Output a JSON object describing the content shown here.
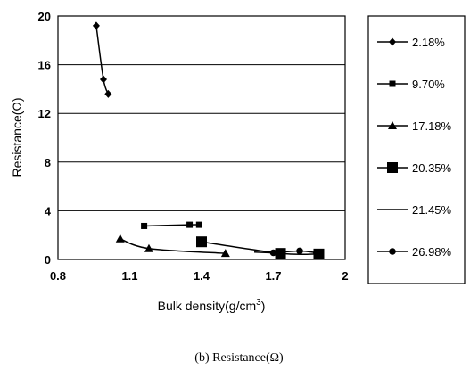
{
  "chart_data": {
    "type": "scatter",
    "xlabel": "Bulk density(g/cm",
    "xlabel_sup": "3",
    "xlabel_end": ")",
    "ylabel": "Resistance(Ω)",
    "caption": "(b) Resistance(Ω)",
    "xlim": [
      0.8,
      2.0
    ],
    "ylim": [
      0,
      20
    ],
    "x_ticks": [
      "0.8",
      "1.1",
      "1.4",
      "1.7",
      "2"
    ],
    "y_ticks": [
      "0",
      "4",
      "8",
      "12",
      "16",
      "20"
    ],
    "grid": "horizontal",
    "legend_position": "right",
    "series": [
      {
        "name": "2.18%",
        "marker": "diamond",
        "points": [
          [
            0.96,
            19.2
          ],
          [
            0.99,
            14.8
          ],
          [
            1.01,
            13.6
          ]
        ]
      },
      {
        "name": "9.70%",
        "marker": "square",
        "points": [
          [
            1.16,
            2.75
          ],
          [
            1.35,
            2.85
          ],
          [
            1.39,
            2.85
          ]
        ]
      },
      {
        "name": "17.18%",
        "marker": "triangle",
        "points": [
          [
            1.06,
            1.7
          ],
          [
            1.18,
            0.9
          ],
          [
            1.5,
            0.5
          ]
        ]
      },
      {
        "name": "20.35%",
        "marker": "bigsquare",
        "points": [
          [
            1.4,
            1.45
          ],
          [
            1.73,
            0.5
          ],
          [
            1.89,
            0.45
          ]
        ]
      },
      {
        "name": "21.45%",
        "marker": "none",
        "points": [
          [
            1.62,
            0.6
          ],
          [
            1.75,
            0.5
          ]
        ]
      },
      {
        "name": "26.98%",
        "marker": "circle",
        "points": [
          [
            1.7,
            0.55
          ],
          [
            1.81,
            0.7
          ],
          [
            1.88,
            0.55
          ]
        ]
      }
    ]
  }
}
